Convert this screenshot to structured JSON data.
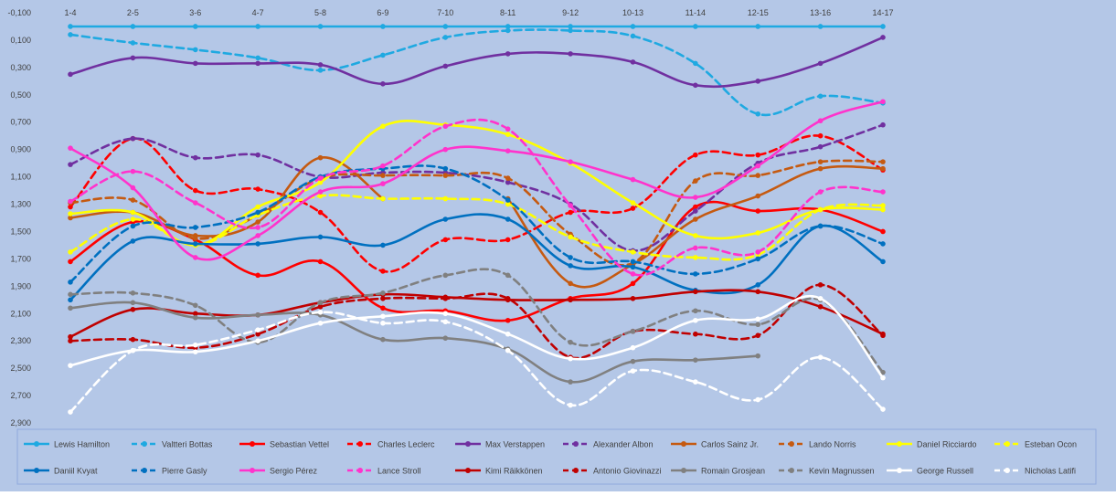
{
  "chart_data": {
    "type": "line",
    "title": "",
    "xlabel": "",
    "ylabel": "",
    "categories": [
      "1-4",
      "2-5",
      "3-6",
      "4-7",
      "5-8",
      "6-9",
      "7-10",
      "8-11",
      "9-12",
      "10-13",
      "11-14",
      "12-15",
      "13-16",
      "14-17"
    ],
    "y_axis": {
      "min": -0.1,
      "max": 2.9,
      "reversed": true,
      "tick_labels": [
        "-0,100",
        "0,100",
        "0,300",
        "0,500",
        "0,700",
        "0,900",
        "1,100",
        "1,300",
        "1,500",
        "1,700",
        "1,900",
        "2,100",
        "2,300",
        "2,500",
        "2,700",
        "2,900"
      ]
    },
    "grid": false,
    "legend": "bottom",
    "background_color": "#b4c7e7",
    "series": [
      {
        "name": "Lewis Hamilton",
        "color": "#1fa9e1",
        "dash": false,
        "values": [
          0,
          0,
          0,
          0,
          0,
          0,
          0,
          0,
          0,
          0,
          0,
          0,
          0,
          0
        ]
      },
      {
        "name": "Valtteri Bottas",
        "color": "#1fa9e1",
        "dash": true,
        "values": [
          0.06,
          0.12,
          0.17,
          0.23,
          0.32,
          0.21,
          0.08,
          0.03,
          0.03,
          0.07,
          0.27,
          0.64,
          0.51,
          0.56
        ]
      },
      {
        "name": "Sebastian Vettel",
        "color": "#ff0000",
        "dash": false,
        "values": [
          1.72,
          1.43,
          1.56,
          1.82,
          1.72,
          2.06,
          2.08,
          2.15,
          1.99,
          1.88,
          1.32,
          1.35,
          1.34,
          1.5
        ]
      },
      {
        "name": "Charles Leclerc",
        "color": "#ff0000",
        "dash": true,
        "values": [
          1.32,
          0.82,
          1.2,
          1.19,
          1.36,
          1.79,
          1.56,
          1.56,
          1.36,
          1.33,
          0.94,
          0.94,
          0.8,
          1.05
        ]
      },
      {
        "name": "Max Verstappen",
        "color": "#7030a0",
        "dash": false,
        "values": [
          0.35,
          0.23,
          0.27,
          0.27,
          0.28,
          0.42,
          0.29,
          0.2,
          0.2,
          0.26,
          0.43,
          0.4,
          0.27,
          0.08
        ]
      },
      {
        "name": "Alexander Albon",
        "color": "#7030a0",
        "dash": true,
        "values": [
          1.01,
          0.82,
          0.96,
          0.94,
          1.1,
          1.07,
          1.07,
          1.14,
          1.3,
          1.64,
          1.35,
          1.0,
          0.88,
          0.72
        ]
      },
      {
        "name": "Carlos Sainz Jr.",
        "color": "#c55a11",
        "dash": false,
        "values": [
          1.4,
          1.36,
          1.53,
          1.43,
          0.96,
          1.26,
          null,
          1.26,
          1.88,
          1.74,
          1.41,
          1.24,
          1.04,
          1.04
        ]
      },
      {
        "name": "Lando Norris",
        "color": "#c55a11",
        "dash": true,
        "values": [
          1.29,
          1.27,
          1.55,
          1.38,
          1.11,
          1.09,
          1.09,
          1.11,
          1.52,
          1.73,
          1.13,
          1.09,
          0.99,
          0.99
        ]
      },
      {
        "name": "Daniel Ricciardo",
        "color": "#ffff00",
        "dash": false,
        "values": [
          1.37,
          1.36,
          1.6,
          1.32,
          1.14,
          0.73,
          0.72,
          0.79,
          1.0,
          1.29,
          1.53,
          1.51,
          1.34,
          1.34
        ]
      },
      {
        "name": "Esteban Ocon",
        "color": "#ffff00",
        "dash": true,
        "values": [
          1.65,
          1.41,
          1.6,
          1.38,
          1.24,
          1.26,
          1.26,
          1.3,
          1.54,
          1.65,
          1.69,
          1.67,
          1.34,
          1.31
        ]
      },
      {
        "name": "Daniil Kvyat",
        "color": "#0070c0",
        "dash": false,
        "values": [
          2.0,
          1.57,
          1.59,
          1.59,
          1.54,
          1.6,
          1.41,
          1.41,
          1.75,
          1.76,
          1.93,
          1.89,
          1.46,
          1.72
        ]
      },
      {
        "name": "Pierre Gasly",
        "color": "#0070c0",
        "dash": true,
        "values": [
          1.87,
          1.46,
          1.47,
          1.36,
          1.1,
          1.04,
          1.04,
          1.27,
          1.69,
          1.72,
          1.81,
          1.7,
          1.46,
          1.59
        ]
      },
      {
        "name": "Sergio Pérez",
        "color": "#ff33cc",
        "dash": false,
        "values": [
          0.89,
          1.18,
          1.69,
          1.53,
          1.21,
          1.15,
          0.9,
          0.91,
          0.99,
          1.12,
          1.25,
          1.02,
          0.69,
          0.55
        ]
      },
      {
        "name": "Lance Stroll",
        "color": "#ff33cc",
        "dash": true,
        "values": [
          1.28,
          1.06,
          1.29,
          1.47,
          1.11,
          1.02,
          0.73,
          0.75,
          1.31,
          1.81,
          1.62,
          1.65,
          1.21,
          1.21
        ]
      },
      {
        "name": "Kimi Räikkönen",
        "color": "#c00000",
        "dash": false,
        "values": [
          2.27,
          2.07,
          2.1,
          2.11,
          2.02,
          1.96,
          1.98,
          2.0,
          2.0,
          1.99,
          1.94,
          1.94,
          2.05,
          2.25
        ]
      },
      {
        "name": "Antonio Giovinazzi",
        "color": "#c00000",
        "dash": true,
        "values": [
          2.3,
          2.29,
          2.35,
          2.25,
          2.05,
          1.99,
          1.99,
          1.99,
          2.42,
          2.23,
          2.25,
          2.26,
          1.89,
          2.26
        ]
      },
      {
        "name": "Romain Grosjean",
        "color": "#808080",
        "dash": false,
        "values": [
          2.06,
          2.02,
          2.13,
          2.11,
          2.11,
          2.29,
          2.28,
          2.36,
          2.6,
          2.45,
          2.44,
          2.41,
          null,
          null
        ]
      },
      {
        "name": "Kevin Magnussen",
        "color": "#808080",
        "dash": true,
        "values": [
          1.96,
          1.95,
          2.04,
          2.31,
          2.02,
          1.95,
          1.82,
          1.82,
          2.31,
          2.23,
          2.08,
          2.18,
          2.0,
          2.53
        ]
      },
      {
        "name": "George Russell",
        "color": "#ffffff",
        "dash": false,
        "values": [
          2.48,
          2.37,
          2.38,
          2.3,
          2.17,
          2.12,
          2.1,
          2.25,
          2.43,
          2.35,
          2.15,
          2.14,
          1.99,
          2.57
        ]
      },
      {
        "name": "Nicholas Latifi",
        "color": "#ffffff",
        "dash": true,
        "values": [
          2.82,
          2.37,
          2.33,
          2.22,
          2.09,
          2.17,
          2.16,
          2.37,
          2.77,
          2.52,
          2.6,
          2.73,
          2.42,
          2.8
        ]
      }
    ]
  }
}
